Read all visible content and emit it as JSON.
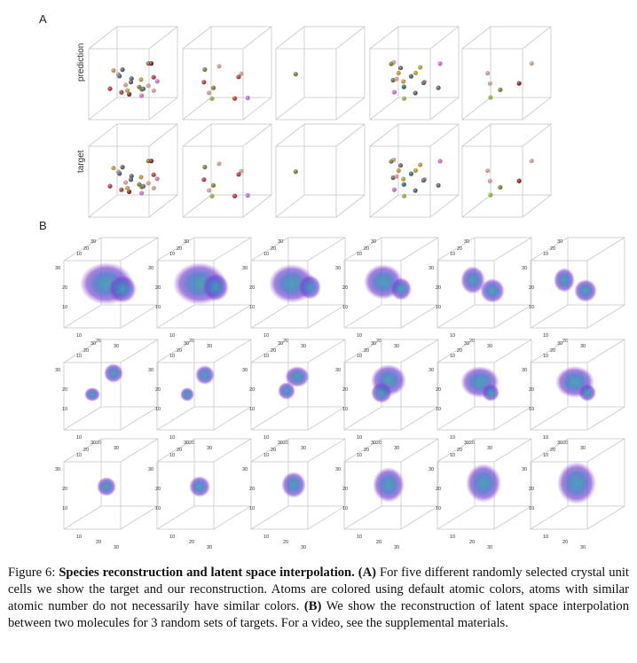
{
  "figure": {
    "panel_a_label": "A",
    "panel_b_label": "B",
    "row_labels": [
      "prediction",
      "target"
    ],
    "axis_ticks": [
      "10",
      "20",
      "30"
    ]
  },
  "caption": {
    "prefix": "Figure 6: ",
    "title": "Species reconstruction and latent space interpolation.",
    "marker_a": "(A)",
    "text_a": " For five different randomly selected crystal unit cells we show the target and our reconstruction. Atoms are colored using default atomic colors, atoms with similar atomic number do not necessarily have similar colors. ",
    "marker_b": "(B)",
    "text_b": " We show the reconstruction of latent space interpolation between two molecules for 3 random sets of targets. For a video, see the supplemental materials."
  },
  "colors": {
    "box_edge": "#c8c8c8",
    "atom_palette": [
      "#8e2323",
      "#c23c3c",
      "#d97bd6",
      "#7a8a3a",
      "#9bbf4a",
      "#556677",
      "#2f6f7f",
      "#c9a640",
      "#e2a7a0",
      "#6a6a6a"
    ],
    "density_outer": "#7a3fd0",
    "density_inner": "#3f8fae"
  }
}
